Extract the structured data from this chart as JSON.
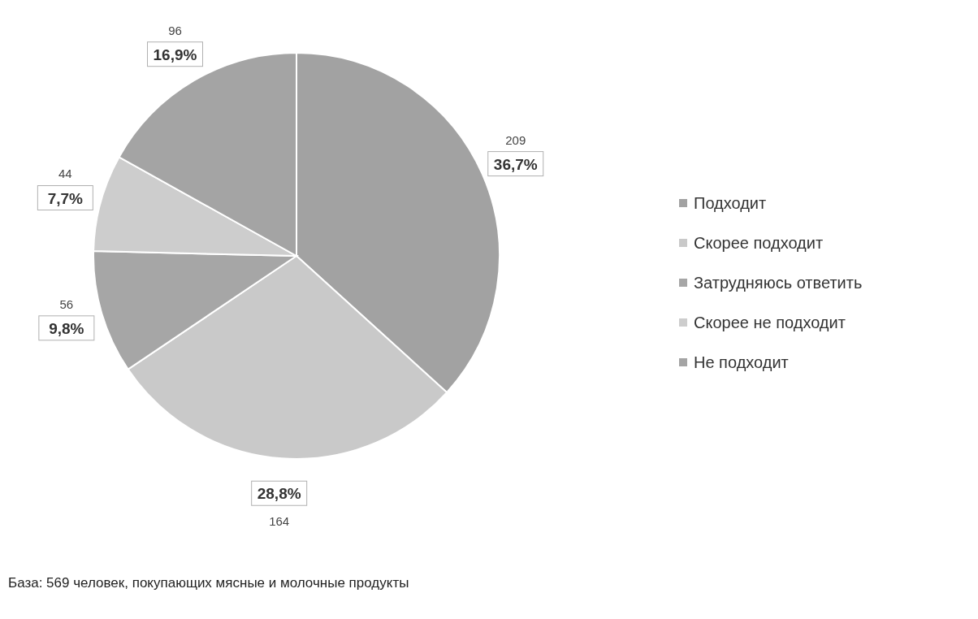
{
  "chart_data": {
    "type": "pie",
    "categories": [
      "Подходит",
      "Скорее подходит",
      "Затрудняюсь ответить",
      "Скорее не подходит",
      "Не подходит"
    ],
    "values": [
      36.7,
      28.8,
      9.8,
      7.7,
      16.9
    ],
    "value_labels": [
      "36,7%",
      "28,8%",
      "9,8%",
      "7,7%",
      "16,9%"
    ],
    "colors": [
      "#a2a2a2",
      "#c9c9c9",
      "#a6a6a6",
      "#cdcdcd",
      "#a4a4a4"
    ],
    "legend": "right",
    "annotations": [
      {
        "text": "209",
        "x": "Подходит"
      },
      {
        "text": "164",
        "x": "Скорее подходит"
      },
      {
        "text": "56",
        "x": "Затрудняюсь ответить"
      },
      {
        "text": "44",
        "x": "Скорее не подходит"
      },
      {
        "text": "96",
        "x": "Не подходит"
      },
      "База: 569 человек, покупающих мясные и молочные продукты"
    ]
  }
}
